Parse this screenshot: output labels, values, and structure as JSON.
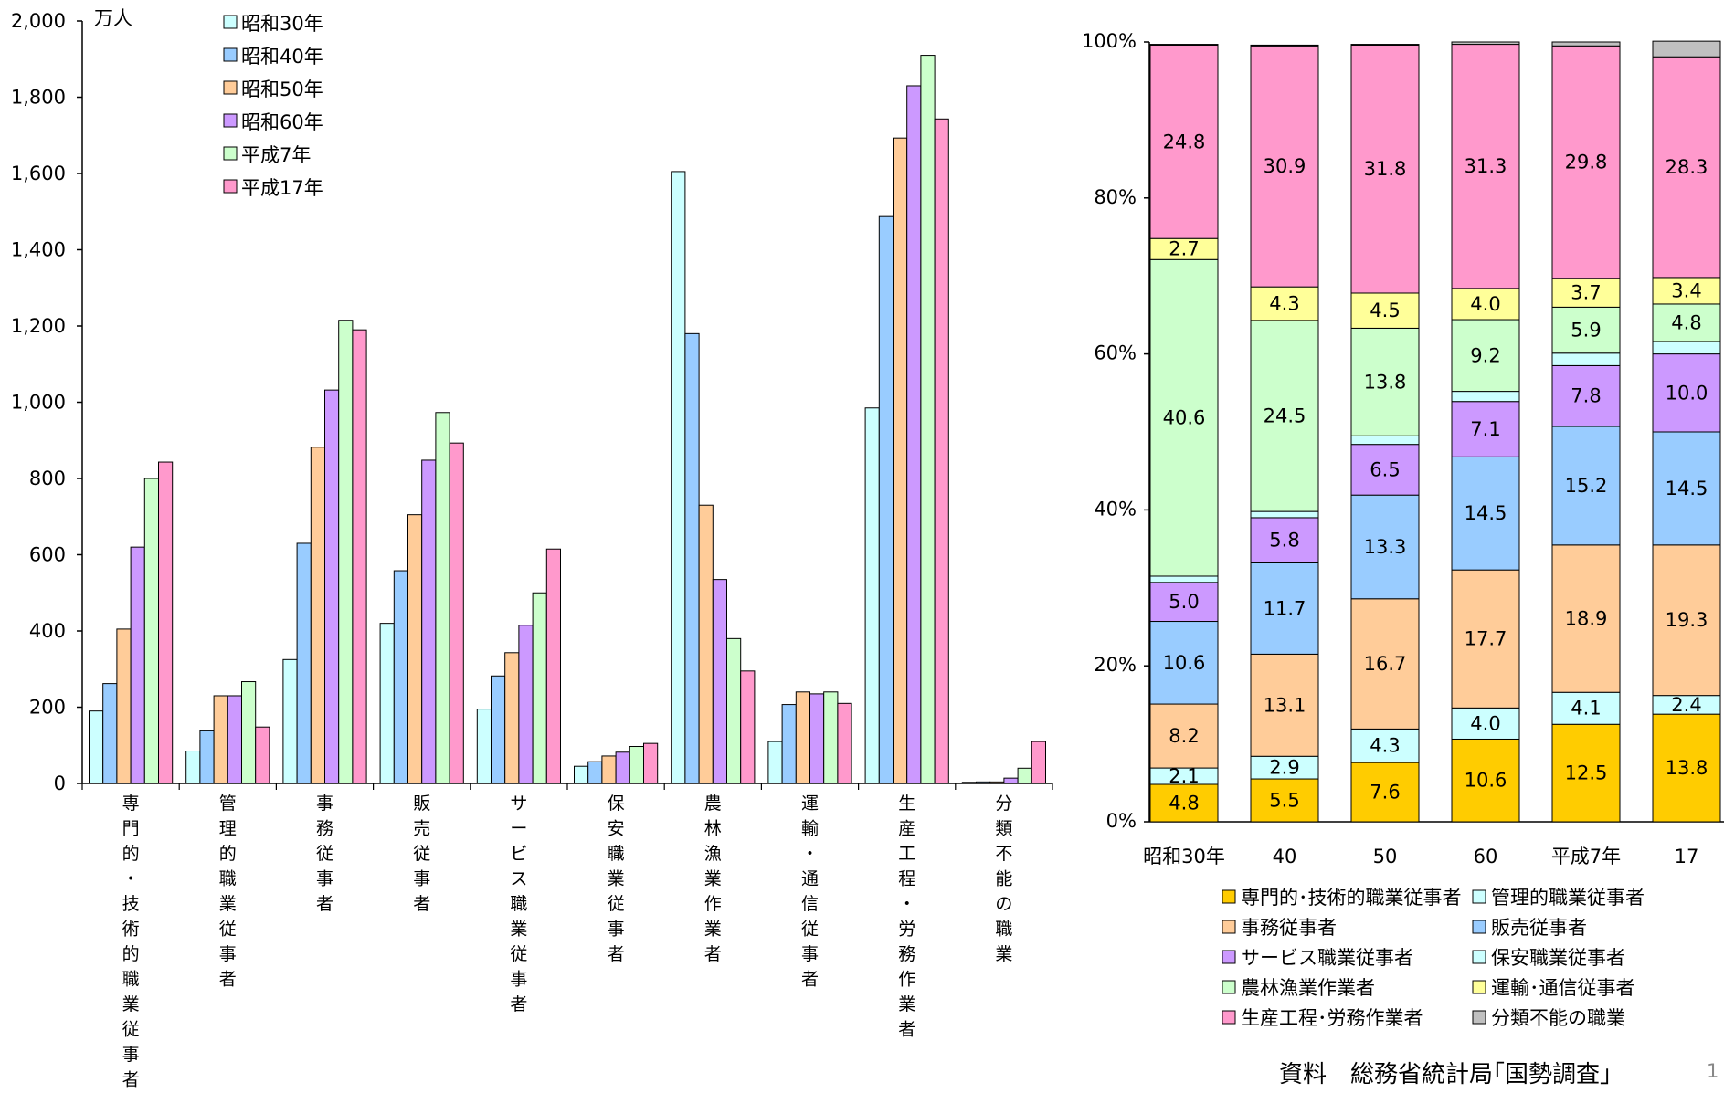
{
  "chart_data": [
    {
      "type": "bar",
      "ylabel": "万人",
      "ylim": [
        0,
        2000
      ],
      "yticks": [
        "0",
        "200",
        "400",
        "600",
        "800",
        "1,000",
        "1,200",
        "1,400",
        "1,600",
        "1,800",
        "2,000"
      ],
      "categories": [
        "専門的・技術的職業従事者",
        "管理的職業従事者",
        "事務従事者",
        "販売従事者",
        "サービス職業従事者",
        "保安職業従事者",
        "農林漁業作業者",
        "運輸・通信従事者",
        "生産工程・労務作業者",
        "分類不能の職業"
      ],
      "series": [
        {
          "name": "昭和30年",
          "color": "#ccffff",
          "values": [
            190,
            85,
            325,
            420,
            195,
            45,
            1605,
            110,
            985,
            3
          ]
        },
        {
          "name": "昭和40年",
          "color": "#99ccff",
          "values": [
            262,
            138,
            630,
            558,
            282,
            57,
            1180,
            207,
            1487,
            4
          ]
        },
        {
          "name": "昭和50年",
          "color": "#ffcc99",
          "values": [
            405,
            230,
            882,
            705,
            343,
            72,
            730,
            240,
            1693,
            4
          ]
        },
        {
          "name": "昭和60年",
          "color": "#cc99ff",
          "values": [
            620,
            230,
            1032,
            848,
            415,
            82,
            535,
            235,
            1830,
            14
          ]
        },
        {
          "name": "平成7年",
          "color": "#ccffcc",
          "values": [
            800,
            267,
            1215,
            973,
            500,
            97,
            380,
            240,
            1910,
            40
          ]
        },
        {
          "name": "平成17年",
          "color": "#ff99cc",
          "values": [
            843,
            148,
            1190,
            893,
            615,
            105,
            295,
            210,
            1743,
            110
          ]
        }
      ]
    },
    {
      "type": "bar",
      "stacked": true,
      "ylim": [
        0,
        100
      ],
      "yticks": [
        "0%",
        "20%",
        "40%",
        "60%",
        "80%",
        "100%"
      ],
      "categories": [
        "昭和30年",
        "40",
        "50",
        "60",
        "平成7年",
        "17"
      ],
      "series": [
        {
          "name": "専門的･技術的職業従事者",
          "color": "#ffcc00",
          "values": [
            4.8,
            5.5,
            7.6,
            10.6,
            12.5,
            13.8
          ],
          "labels": [
            "4.8",
            "5.5",
            "7.6",
            "10.6",
            "12.5",
            "13.8"
          ]
        },
        {
          "name": "管理的職業従事者",
          "color": "#ccffff",
          "values": [
            2.1,
            2.9,
            4.3,
            4.0,
            4.1,
            2.4
          ],
          "labels": [
            "2.1",
            "2.9",
            "4.3",
            "4.0",
            "4.1",
            "2.4"
          ]
        },
        {
          "name": "事務従事者",
          "color": "#ffcc99",
          "values": [
            8.2,
            13.1,
            16.7,
            17.7,
            18.9,
            19.3
          ],
          "labels": [
            "8.2",
            "13.1",
            "16.7",
            "17.7",
            "18.9",
            "19.3"
          ]
        },
        {
          "name": "販売従事者",
          "color": "#99ccff",
          "values": [
            10.6,
            11.7,
            13.3,
            14.5,
            15.2,
            14.5
          ],
          "labels": [
            "10.6",
            "11.7",
            "13.3",
            "14.5",
            "15.2",
            "14.5"
          ]
        },
        {
          "name": "サービス職業従事者",
          "color": "#cc99ff",
          "values": [
            5.0,
            5.8,
            6.5,
            7.1,
            7.8,
            10.0
          ],
          "labels": [
            "5.0",
            "5.8",
            "6.5",
            "7.1",
            "7.8",
            "10.0"
          ]
        },
        {
          "name": "保安職業従事者",
          "color": "#ccffff",
          "values": [
            0.8,
            0.8,
            1.1,
            1.3,
            1.6,
            1.6
          ],
          "labels": [
            "",
            "",
            "",
            "",
            "",
            ""
          ]
        },
        {
          "name": "農林漁業作業者",
          "color": "#ccffcc",
          "values": [
            40.6,
            24.5,
            13.8,
            9.2,
            5.9,
            4.8
          ],
          "labels": [
            "40.6",
            "24.5",
            "13.8",
            "9.2",
            "5.9",
            "4.8"
          ]
        },
        {
          "name": "運輸･通信従事者",
          "color": "#ffff99",
          "values": [
            2.7,
            4.3,
            4.5,
            4.0,
            3.7,
            3.4
          ],
          "labels": [
            "2.7",
            "4.3",
            "4.5",
            "4.0",
            "3.7",
            "3.4"
          ]
        },
        {
          "name": "生産工程･労務作業者",
          "color": "#ff99cc",
          "values": [
            24.8,
            30.9,
            31.8,
            31.3,
            29.8,
            28.3
          ],
          "labels": [
            "24.8",
            "30.9",
            "31.8",
            "31.3",
            "29.8",
            "28.3"
          ]
        },
        {
          "name": "分類不能の職業",
          "color": "#c0c0c0",
          "values": [
            0.1,
            0.1,
            0.1,
            0.3,
            0.5,
            2.0
          ],
          "labels": [
            "",
            "",
            "",
            "",
            "",
            ""
          ]
        }
      ]
    }
  ],
  "source": "資料　総務省統計局｢国勢調査｣",
  "page_number": "1"
}
